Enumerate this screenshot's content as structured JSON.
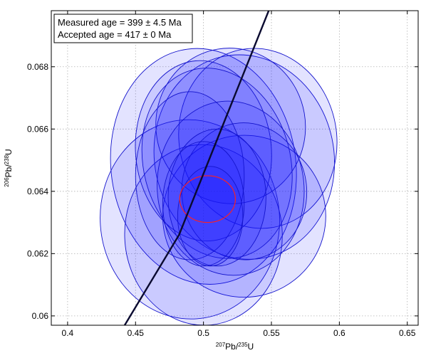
{
  "chart_data": {
    "type": "scatter",
    "subtype": "concordia-error-ellipses",
    "xlabel": {
      "sup1": "207",
      "base1": "Pb/",
      "sup2": "235",
      "base2": "U"
    },
    "ylabel": {
      "sup1": "206",
      "base1": "Pb/",
      "sup2": "238",
      "base2": "U"
    },
    "xlim": [
      0.388,
      0.658
    ],
    "ylim": [
      0.0597,
      0.0698
    ],
    "xticks": [
      0.4,
      0.45,
      0.5,
      0.55,
      0.6,
      0.65
    ],
    "xtick_labels": [
      "0.4",
      "0.45",
      "0.5",
      "0.55",
      "0.6",
      "0.65"
    ],
    "yticks": [
      0.06,
      0.062,
      0.064,
      0.066,
      0.068
    ],
    "ytick_labels": [
      "0.06",
      "0.062",
      "0.064",
      "0.066",
      "0.068"
    ],
    "grid": true,
    "legend_position": "top-left",
    "legend": [
      "Measured age = 399 ± 4.5 Ma",
      "Accepted age = 417 ± 0 Ma"
    ],
    "concordia_line": [
      [
        0.442,
        0.0597
      ],
      [
        0.482,
        0.0626
      ],
      [
        0.515,
        0.0662
      ],
      [
        0.548,
        0.0698
      ]
    ],
    "colors": {
      "ellipse_fill": "#1a1aff",
      "ellipse_stroke": "#1414cc",
      "mean_stroke": "#ff2020",
      "concordia": "#0a0a30"
    },
    "ellipses": [
      {
        "cx": 0.5,
        "cy": 0.0648,
        "rx": 0.068,
        "ry": 0.0038,
        "angle": 8
      },
      {
        "cx": 0.53,
        "cy": 0.0651,
        "rx": 0.066,
        "ry": 0.0033,
        "angle": 12
      },
      {
        "cx": 0.54,
        "cy": 0.0657,
        "rx": 0.058,
        "ry": 0.0029,
        "angle": 10
      },
      {
        "cx": 0.53,
        "cy": 0.0632,
        "rx": 0.06,
        "ry": 0.0026,
        "angle": 8
      },
      {
        "cx": 0.49,
        "cy": 0.0631,
        "rx": 0.066,
        "ry": 0.0032,
        "angle": 4
      },
      {
        "cx": 0.5,
        "cy": 0.0626,
        "rx": 0.058,
        "ry": 0.0029,
        "angle": 2
      },
      {
        "cx": 0.52,
        "cy": 0.0661,
        "rx": 0.055,
        "ry": 0.0025,
        "angle": 10
      },
      {
        "cx": 0.5,
        "cy": 0.0653,
        "rx": 0.05,
        "ry": 0.0029,
        "angle": 5
      },
      {
        "cx": 0.51,
        "cy": 0.0649,
        "rx": 0.054,
        "ry": 0.0031,
        "angle": 15
      },
      {
        "cx": 0.52,
        "cy": 0.0641,
        "rx": 0.054,
        "ry": 0.0028,
        "angle": 6
      },
      {
        "cx": 0.53,
        "cy": 0.064,
        "rx": 0.046,
        "ry": 0.0022,
        "angle": 4
      },
      {
        "cx": 0.49,
        "cy": 0.0645,
        "rx": 0.04,
        "ry": 0.0027,
        "angle": 0
      },
      {
        "cx": 0.51,
        "cy": 0.0638,
        "rx": 0.036,
        "ry": 0.0022,
        "angle": 0
      },
      {
        "cx": 0.5,
        "cy": 0.0636,
        "rx": 0.03,
        "ry": 0.002,
        "angle": 0
      },
      {
        "cx": 0.505,
        "cy": 0.0632,
        "rx": 0.024,
        "ry": 0.0016,
        "angle": 0
      }
    ],
    "mean_ellipse": {
      "cx": 0.503,
      "cy": 0.06375,
      "rx": 0.0205,
      "ry": 0.00075,
      "angle": 0
    }
  }
}
